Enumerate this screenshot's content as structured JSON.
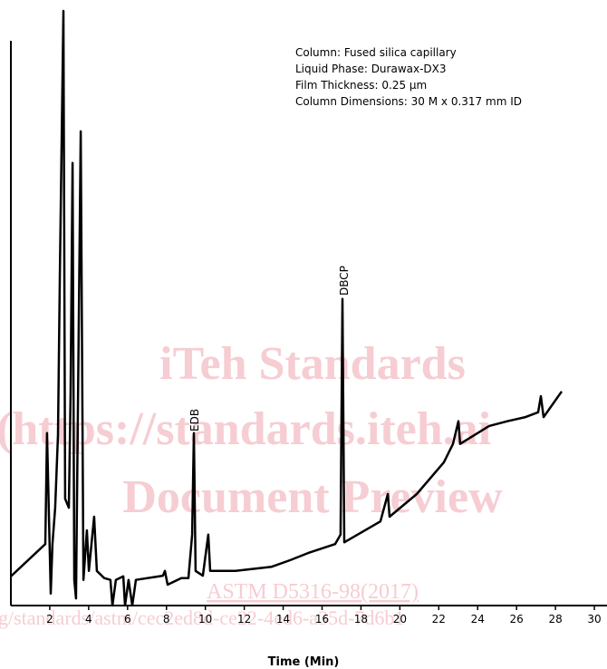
{
  "chart_data": {
    "type": "line",
    "notes": [
      "Column: Fused silica capillary",
      "Liquid Phase: Durawax-DX3",
      "Film Thickness: 0.25 μm",
      "Column Dimensions: 30 M x 0.317 mm ID"
    ],
    "peak_labels": [
      "EDB",
      "DBCP"
    ],
    "x_label": "Time (Min)",
    "watermark": [
      "iTeh Standards",
      "(https://standards.iteh.ai",
      "Document Preview",
      "ASTM D5316-98(2017)",
      "g/standards/astm/cec2ed8d-ce22-4ed6-a35d-7d6b1"
    ],
    "color": "#000000",
    "x": [
      0,
      1.77,
      1.86,
      2.05,
      2.14,
      2.28,
      2.42,
      2.52,
      2.7,
      2.79,
      2.98,
      3.07,
      3.17,
      3.26,
      3.35,
      3.59,
      3.73,
      3.91,
      4.01,
      4.28,
      4.42,
      4.8,
      5.12,
      5.22,
      5.4,
      5.78,
      5.87,
      6.05,
      6.24,
      6.43,
      7.82,
      7.92,
      8.06,
      8.76,
      9.13,
      9.32,
      9.41,
      9.5,
      9.87,
      10.15,
      10.25,
      11.55,
      13.41,
      14.35,
      15.28,
      16.67,
      16.95,
      17.05,
      17.14,
      19.0,
      19.38,
      19.47,
      20.87,
      22.26,
      22.73,
      23.01,
      23.1,
      24.59,
      25.52,
      26.46,
      27.11,
      27.25,
      27.39,
      28.32
    ],
    "values": [
      4.9,
      10.3,
      28.9,
      2.0,
      10.3,
      16.4,
      28.6,
      55.9,
      99.7,
      17.9,
      16.4,
      35.4,
      74.2,
      4.3,
      1.2,
      79.5,
      4.3,
      12.6,
      5.8,
      14.9,
      5.8,
      4.6,
      4.3,
      0,
      4.3,
      4.9,
      0,
      4.3,
      0,
      4.3,
      5.0,
      5.8,
      3.5,
      4.6,
      4.6,
      11.9,
      28.9,
      5.8,
      5.0,
      11.9,
      5.8,
      5.8,
      6.5,
      7.6,
      8.8,
      10.3,
      11.9,
      51.4,
      10.6,
      14.1,
      18.7,
      14.9,
      18.7,
      24.0,
      27.1,
      30.9,
      27.1,
      30.1,
      30.9,
      31.6,
      32.4,
      35.1,
      31.6,
      35.9
    ],
    "xlim": [
      0,
      30.65
    ],
    "ylim": [
      0,
      100
    ],
    "xticks": [
      2,
      4,
      6,
      8,
      10,
      12,
      14,
      16,
      18,
      20,
      22,
      24,
      26,
      28,
      30
    ]
  }
}
